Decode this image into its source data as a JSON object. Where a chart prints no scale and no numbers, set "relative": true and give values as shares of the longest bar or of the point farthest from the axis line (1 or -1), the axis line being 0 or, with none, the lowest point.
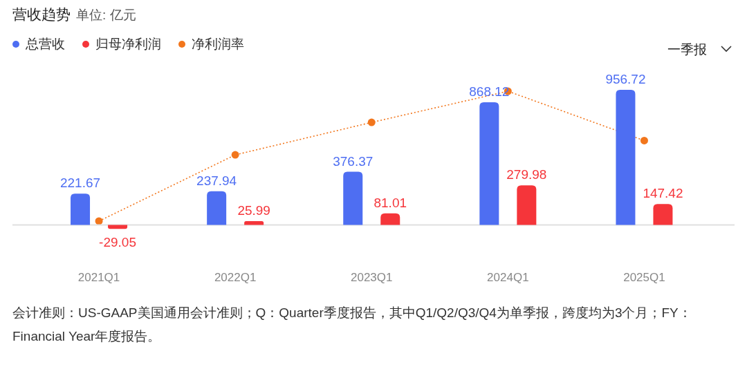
{
  "chart_data": [
    {
      "type": "bar",
      "title": "营收趋势",
      "subtitle": "单位: 亿元",
      "categories": [
        "2021Q1",
        "2022Q1",
        "2023Q1",
        "2024Q1",
        "2025Q1"
      ],
      "series": [
        {
          "name": "总营收",
          "color": "#4e6ef2",
          "values": [
            221.67,
            237.94,
            376.37,
            868.12,
            956.72
          ]
        },
        {
          "name": "归母净利润",
          "color": "#f5353a",
          "values": [
            -29.05,
            25.99,
            81.01,
            279.98,
            147.42
          ]
        }
      ],
      "data_labels": true,
      "legend": "top left",
      "annotations": [
        "一季报",
        "会计准则：US-GAAP美国通用会计准则；Q：Quarter季度报告，其中Q1/Q2/Q3/Q4为单季报，跨度均为3个月；FY：Financial Year年度报告。"
      ]
    },
    {
      "type": "line",
      "relative": true,
      "categories": [
        null,
        null,
        null,
        null,
        null
      ],
      "series": [
        {
          "name": "净利润率",
          "color": "#f2761c",
          "values": [
            0,
            0.51,
            0.76,
            1,
            0.62
          ]
        }
      ],
      "marker": "circle",
      "line_style": "dotted",
      "legend": "top left"
    }
  ]
}
